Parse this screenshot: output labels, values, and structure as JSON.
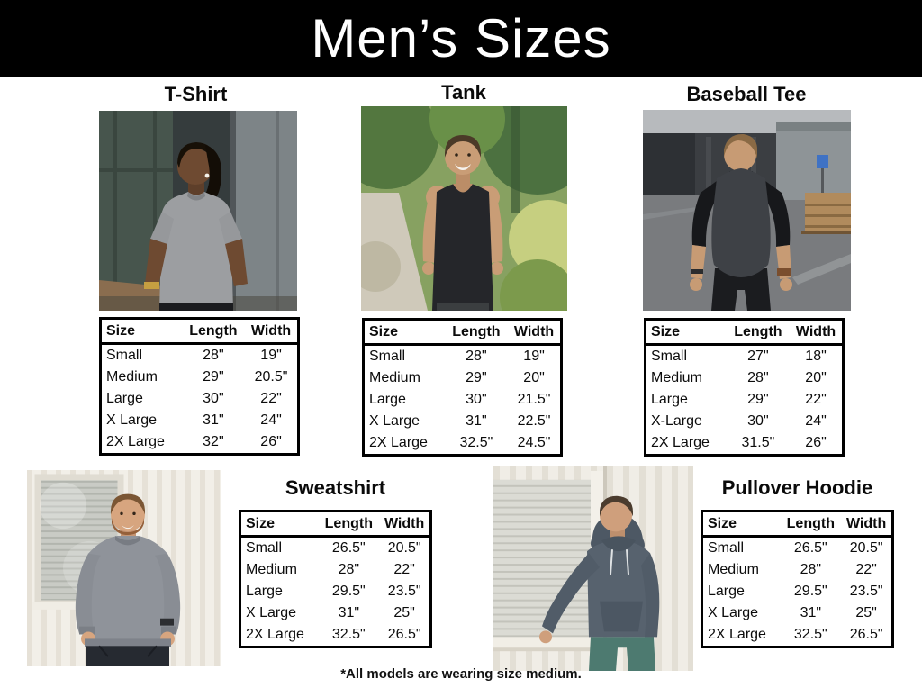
{
  "title": "Men’s Sizes",
  "footnote": "*All models are wearing size medium.",
  "columns": [
    "Size",
    "Length",
    "Width"
  ],
  "products": [
    {
      "label": "T-Shirt",
      "rows": [
        [
          "Small",
          "28\"",
          "19\""
        ],
        [
          "Medium",
          "29\"",
          "20.5\""
        ],
        [
          "Large",
          "30\"",
          "22\""
        ],
        [
          "X Large",
          "31\"",
          "24\""
        ],
        [
          "2X Large",
          "32\"",
          "26\""
        ]
      ]
    },
    {
      "label": "Tank",
      "rows": [
        [
          "Small",
          "28\"",
          "19\""
        ],
        [
          "Medium",
          "29\"",
          "20\""
        ],
        [
          "Large",
          "30\"",
          "21.5\""
        ],
        [
          "X Large",
          "31\"",
          "22.5\""
        ],
        [
          "2X Large",
          "32.5\"",
          "24.5\""
        ]
      ]
    },
    {
      "label": "Baseball Tee",
      "rows": [
        [
          "Small",
          "27\"",
          "18\""
        ],
        [
          "Medium",
          "28\"",
          "20\""
        ],
        [
          "Large",
          "29\"",
          "22\""
        ],
        [
          "X-Large",
          "30\"",
          "24\""
        ],
        [
          "2X Large",
          "31.5\"",
          "26\""
        ]
      ]
    },
    {
      "label": "Sweatshirt",
      "rows": [
        [
          "Small",
          "26.5\"",
          "20.5\""
        ],
        [
          "Medium",
          "28\"",
          "22\""
        ],
        [
          "Large",
          "29.5\"",
          "23.5\""
        ],
        [
          "X Large",
          "31\"",
          "25\""
        ],
        [
          "2X Large",
          "32.5\"",
          "26.5\""
        ]
      ]
    },
    {
      "label": "Pullover Hoodie",
      "rows": [
        [
          "Small",
          "26.5\"",
          "20.5\""
        ],
        [
          "Medium",
          "28\"",
          "22\""
        ],
        [
          "Large",
          "29.5\"",
          "23.5\""
        ],
        [
          "X Large",
          "31\"",
          "25\""
        ],
        [
          "2X Large",
          "32.5\"",
          "26.5\""
        ]
      ]
    }
  ],
  "colors": {
    "title_bar_bg": "#000000",
    "title_text": "#ffffff",
    "table_border": "#000000",
    "body_text": "#0c0c0c",
    "page_bg": "#ffffff"
  }
}
